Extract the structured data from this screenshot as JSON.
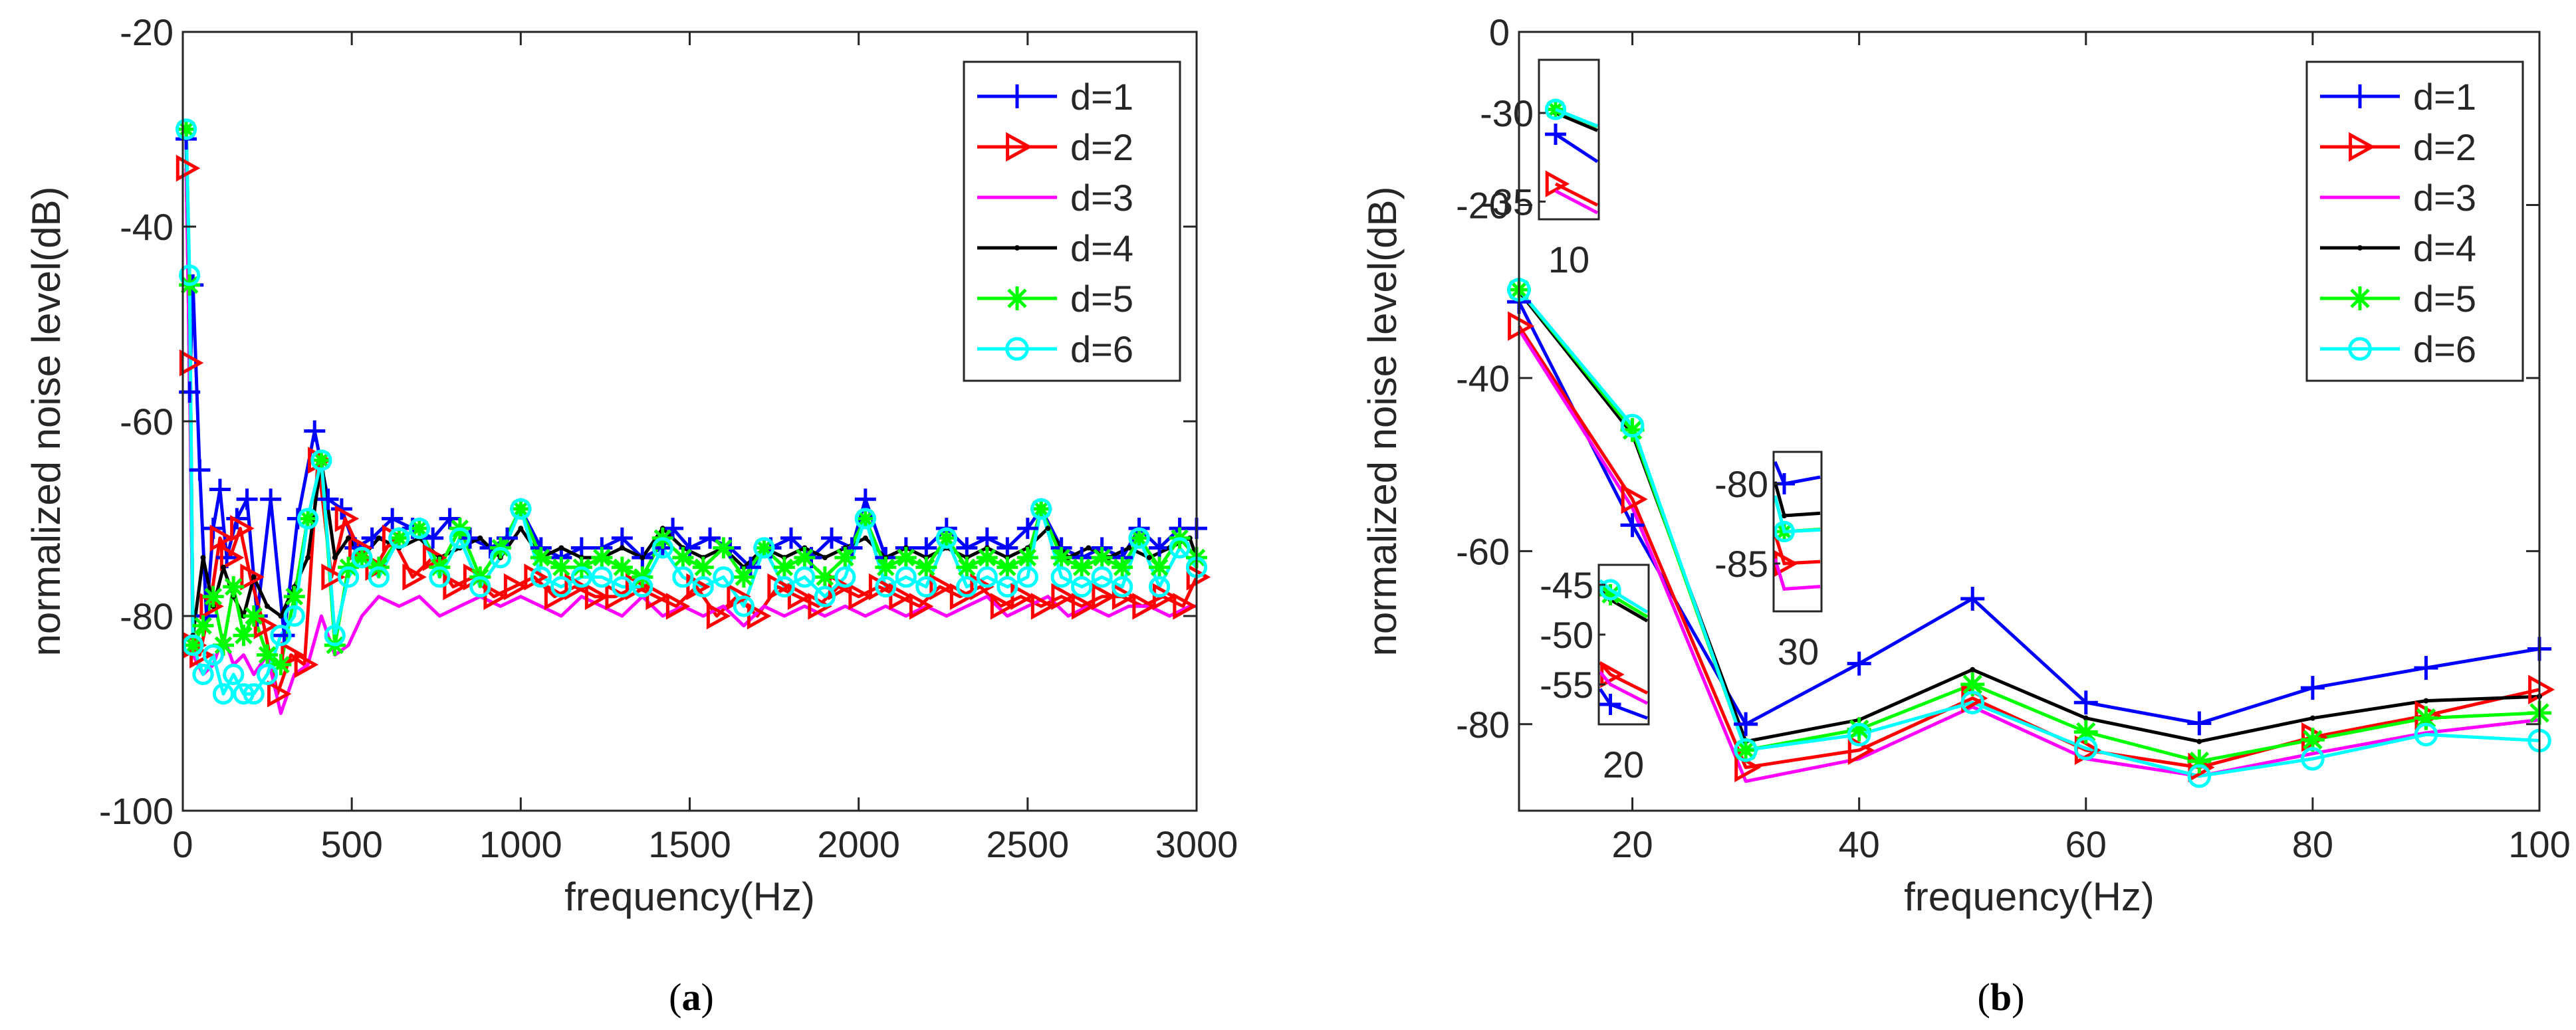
{
  "chart_data": [
    {
      "id": "a",
      "type": "line",
      "caption": {
        "open": "(",
        "letter": "a",
        "close": ")"
      },
      "title": "",
      "xlabel": "frequency(Hz)",
      "ylabel": "normalized noise level(dB)",
      "xlim": [
        0,
        3000
      ],
      "ylim": [
        -100,
        -20
      ],
      "xticks": [
        0,
        500,
        1000,
        1500,
        2000,
        2500,
        3000
      ],
      "xtick_labels": [
        "0",
        "500",
        "1000",
        "1500",
        "2000",
        "2500",
        "3000"
      ],
      "yticks": [
        -100,
        -80,
        -60,
        -40,
        -20
      ],
      "ytick_labels": [
        "-100",
        "-80",
        "-60",
        "-40",
        "-20"
      ],
      "legend_position": "top-right",
      "series": [
        {
          "name": "d=1",
          "color": "#0000FF",
          "marker": "plus",
          "x": [
            10,
            20,
            30,
            50,
            70,
            90,
            110,
            130,
            160,
            190,
            220,
            260,
            300,
            340,
            390,
            430,
            470,
            510,
            560,
            620,
            680,
            740,
            790,
            850,
            910,
            960,
            1000,
            1060,
            1120,
            1180,
            1240,
            1300,
            1360,
            1420,
            1450,
            1500,
            1560,
            1620,
            1680,
            1740,
            1800,
            1860,
            1920,
            1980,
            2020,
            2080,
            2140,
            2200,
            2260,
            2320,
            2380,
            2440,
            2500,
            2540,
            2600,
            2660,
            2720,
            2780,
            2830,
            2890,
            2950,
            3000
          ],
          "values": [
            -31,
            -57,
            -46,
            -65,
            -80,
            -71,
            -67,
            -74,
            -70,
            -68,
            -80,
            -68,
            -82,
            -70,
            -61,
            -68,
            -69,
            -73,
            -72,
            -70,
            -71,
            -72,
            -70,
            -72,
            -73,
            -72,
            -69,
            -73,
            -74,
            -73,
            -73,
            -72,
            -74,
            -73,
            -71,
            -73,
            -72,
            -73,
            -75,
            -73,
            -72,
            -74,
            -72,
            -73,
            -68,
            -74,
            -73,
            -73,
            -71,
            -73,
            -72,
            -73,
            -71,
            -69,
            -73,
            -74,
            -73,
            -74,
            -71,
            -73,
            -71,
            -71
          ]
        },
        {
          "name": "d=2",
          "color": "#FF0000",
          "marker": "triangle-right",
          "x": [
            10,
            20,
            30,
            50,
            80,
            110,
            140,
            170,
            200,
            240,
            280,
            320,
            360,
            400,
            440,
            480,
            520,
            570,
            620,
            680,
            740,
            800,
            860,
            920,
            980,
            1040,
            1100,
            1160,
            1220,
            1280,
            1340,
            1400,
            1460,
            1520,
            1580,
            1640,
            1700,
            1760,
            1820,
            1880,
            1940,
            2000,
            2060,
            2120,
            2180,
            2240,
            2300,
            2360,
            2420,
            2480,
            2540,
            2600,
            2660,
            2720,
            2780,
            2840,
            2900,
            2960,
            3000
          ],
          "values": [
            -34,
            -54,
            -83,
            -84,
            -79,
            -72,
            -74,
            -71,
            -76,
            -81,
            -88,
            -84,
            -85,
            -64,
            -76,
            -70,
            -73,
            -75,
            -72,
            -76,
            -74,
            -77,
            -76,
            -78,
            -77,
            -76,
            -78,
            -77,
            -78,
            -78,
            -77,
            -78,
            -79,
            -77,
            -80,
            -78,
            -80,
            -77,
            -78,
            -79,
            -77,
            -78,
            -77,
            -78,
            -79,
            -77,
            -78,
            -77,
            -79,
            -78,
            -79,
            -78,
            -79,
            -78,
            -78,
            -79,
            -78,
            -79,
            -76
          ]
        },
        {
          "name": "d=3",
          "color": "#FF00FF",
          "marker": "none",
          "x": [
            10,
            20,
            30,
            60,
            90,
            120,
            150,
            180,
            210,
            250,
            290,
            330,
            370,
            410,
            450,
            490,
            530,
            580,
            640,
            700,
            760,
            820,
            880,
            940,
            1000,
            1060,
            1120,
            1180,
            1240,
            1300,
            1360,
            1420,
            1480,
            1540,
            1600,
            1660,
            1720,
            1780,
            1840,
            1900,
            1960,
            2020,
            2080,
            2140,
            2200,
            2260,
            2320,
            2380,
            2440,
            2500,
            2560,
            2620,
            2680,
            2740,
            2800,
            2860,
            2920,
            2980,
            3000
          ],
          "values": [
            -34,
            -55,
            -84,
            -86,
            -85,
            -82,
            -85,
            -84,
            -86,
            -84,
            -90,
            -86,
            -85,
            -80,
            -84,
            -83,
            -80,
            -78,
            -79,
            -78,
            -80,
            -79,
            -78,
            -79,
            -78,
            -79,
            -80,
            -78,
            -79,
            -80,
            -78,
            -80,
            -79,
            -80,
            -79,
            -81,
            -79,
            -80,
            -79,
            -80,
            -79,
            -80,
            -79,
            -80,
            -79,
            -80,
            -79,
            -78,
            -80,
            -79,
            -78,
            -80,
            -79,
            -80,
            -79,
            -79,
            -80,
            -79,
            -79
          ]
        },
        {
          "name": "d=4",
          "color": "#000000",
          "marker": "dot",
          "x": [
            10,
            20,
            30,
            60,
            90,
            120,
            150,
            180,
            210,
            250,
            290,
            330,
            370,
            410,
            450,
            490,
            530,
            580,
            640,
            700,
            760,
            820,
            880,
            940,
            1000,
            1060,
            1120,
            1180,
            1240,
            1300,
            1360,
            1420,
            1480,
            1540,
            1600,
            1660,
            1720,
            1780,
            1840,
            1900,
            1960,
            2020,
            2080,
            2140,
            2200,
            2260,
            2320,
            2380,
            2440,
            2500,
            2560,
            2620,
            2680,
            2740,
            2800,
            2860,
            2920,
            2980,
            3000
          ],
          "values": [
            -30,
            -46,
            -82,
            -74,
            -79,
            -75,
            -78,
            -80,
            -76,
            -79,
            -80,
            -77,
            -74,
            -64,
            -74,
            -72,
            -74,
            -72,
            -73,
            -72,
            -74,
            -73,
            -72,
            -74,
            -71,
            -74,
            -73,
            -74,
            -74,
            -73,
            -74,
            -71,
            -73,
            -74,
            -73,
            -75,
            -73,
            -74,
            -73,
            -74,
            -73,
            -72,
            -74,
            -73,
            -74,
            -73,
            -74,
            -73,
            -74,
            -73,
            -71,
            -74,
            -73,
            -74,
            -73,
            -74,
            -73,
            -72,
            -74
          ]
        },
        {
          "name": "d=5",
          "color": "#00FF00",
          "marker": "star",
          "x": [
            10,
            20,
            30,
            60,
            90,
            120,
            150,
            180,
            210,
            250,
            290,
            330,
            370,
            410,
            450,
            490,
            530,
            580,
            640,
            700,
            760,
            820,
            880,
            940,
            1000,
            1060,
            1120,
            1180,
            1240,
            1300,
            1360,
            1420,
            1480,
            1540,
            1600,
            1660,
            1720,
            1780,
            1840,
            1900,
            1960,
            2020,
            2080,
            2140,
            2200,
            2260,
            2320,
            2380,
            2440,
            2500,
            2540,
            2600,
            2660,
            2720,
            2780,
            2830,
            2890,
            2950,
            3000
          ],
          "values": [
            -30,
            -46,
            -83,
            -81,
            -78,
            -83,
            -77,
            -82,
            -80,
            -84,
            -85,
            -78,
            -70,
            -64,
            -83,
            -75,
            -74,
            -75,
            -72,
            -71,
            -75,
            -71,
            -76,
            -73,
            -69,
            -74,
            -75,
            -75,
            -74,
            -75,
            -76,
            -72,
            -74,
            -75,
            -73,
            -76,
            -73,
            -75,
            -74,
            -76,
            -74,
            -70,
            -75,
            -74,
            -75,
            -72,
            -75,
            -74,
            -75,
            -74,
            -69,
            -74,
            -75,
            -74,
            -75,
            -72,
            -75,
            -72,
            -74
          ]
        },
        {
          "name": "d=6",
          "color": "#00FFFF",
          "marker": "circle",
          "x": [
            10,
            20,
            30,
            60,
            90,
            120,
            150,
            180,
            210,
            250,
            290,
            330,
            370,
            410,
            450,
            490,
            530,
            580,
            640,
            700,
            760,
            820,
            880,
            940,
            1000,
            1060,
            1120,
            1180,
            1240,
            1300,
            1360,
            1420,
            1480,
            1540,
            1600,
            1660,
            1720,
            1780,
            1840,
            1900,
            1960,
            2020,
            2080,
            2140,
            2200,
            2260,
            2320,
            2380,
            2440,
            2500,
            2540,
            2600,
            2660,
            2720,
            2780,
            2830,
            2890,
            2950,
            3000
          ],
          "values": [
            -30,
            -45,
            -83,
            -86,
            -84,
            -88,
            -86,
            -88,
            -88,
            -86,
            -82,
            -80,
            -70,
            -64,
            -82,
            -76,
            -74,
            -76,
            -72,
            -71,
            -76,
            -72,
            -77,
            -74,
            -69,
            -76,
            -77,
            -76,
            -76,
            -77,
            -77,
            -73,
            -76,
            -77,
            -76,
            -79,
            -73,
            -77,
            -76,
            -78,
            -76,
            -70,
            -77,
            -76,
            -77,
            -72,
            -77,
            -76,
            -77,
            -76,
            -69,
            -76,
            -77,
            -76,
            -77,
            -72,
            -77,
            -73,
            -75
          ]
        }
      ]
    },
    {
      "id": "b",
      "type": "line",
      "caption": {
        "open": "(",
        "letter": "b",
        "close": ")"
      },
      "title": "",
      "xlabel": "frequency(Hz)",
      "ylabel": "normalized noise level(dB)",
      "xlim": [
        10,
        100
      ],
      "ylim": [
        -90,
        0
      ],
      "xticks": [
        20,
        40,
        60,
        80,
        100
      ],
      "xtick_labels": [
        "20",
        "40",
        "60",
        "80",
        "100"
      ],
      "yticks": [
        -80,
        -60,
        -40,
        -20,
        0
      ],
      "ytick_labels": [
        "-80",
        "-60",
        "-40",
        "-20",
        "0"
      ],
      "legend_position": "top-right",
      "x": [
        10,
        20,
        30,
        40,
        50,
        60,
        70,
        80,
        90,
        100
      ],
      "series": [
        {
          "name": "d=1",
          "color": "#0000FF",
          "marker": "plus",
          "values": [
            -31.2,
            -57,
            -80,
            -73,
            -65.5,
            -77.5,
            -79.9,
            -75.8,
            -73.5,
            -71.3
          ]
        },
        {
          "name": "d=2",
          "color": "#FF0000",
          "marker": "triangle-right",
          "values": [
            -34,
            -54,
            -85,
            -83,
            -77,
            -83,
            -85,
            -81.5,
            -79,
            -76
          ]
        },
        {
          "name": "d=3",
          "color": "#FF00FF",
          "marker": "none",
          "values": [
            -34.4,
            -55,
            -86.6,
            -84,
            -78,
            -84,
            -86,
            -83.4,
            -81,
            -79.5
          ]
        },
        {
          "name": "d=4",
          "color": "#000000",
          "marker": "dot",
          "values": [
            -30,
            -46.5,
            -82,
            -79.5,
            -73.7,
            -79.3,
            -82,
            -79.3,
            -77.3,
            -76.8
          ]
        },
        {
          "name": "d=5",
          "color": "#00FF00",
          "marker": "star",
          "values": [
            -29.8,
            -46,
            -83,
            -80.6,
            -75.4,
            -80.9,
            -84.3,
            -81.8,
            -79.3,
            -78.7
          ]
        },
        {
          "name": "d=6",
          "color": "#00FFFF",
          "marker": "circle",
          "values": [
            -29.8,
            -45.5,
            -83,
            -81.2,
            -77.5,
            -82.8,
            -86,
            -84,
            -81.2,
            -81.9
          ]
        }
      ],
      "insets": [
        {
          "xlabel": "10",
          "ylim": [
            -36,
            -27
          ],
          "yticks": [
            -30,
            -35
          ],
          "ytick_labels": [
            "-30",
            "-35"
          ],
          "series_index_x": 0
        },
        {
          "xlabel": "20",
          "ylim": [
            -59,
            -43
          ],
          "yticks": [
            -45,
            -50,
            -55
          ],
          "ytick_labels": [
            "-45",
            "-50",
            "-55"
          ],
          "series_index_x": 1
        },
        {
          "xlabel": "30",
          "ylim": [
            -88,
            -78
          ],
          "yticks": [
            -80,
            -85
          ],
          "ytick_labels": [
            "-80",
            "-85"
          ],
          "series_index_x": 2
        }
      ]
    }
  ]
}
